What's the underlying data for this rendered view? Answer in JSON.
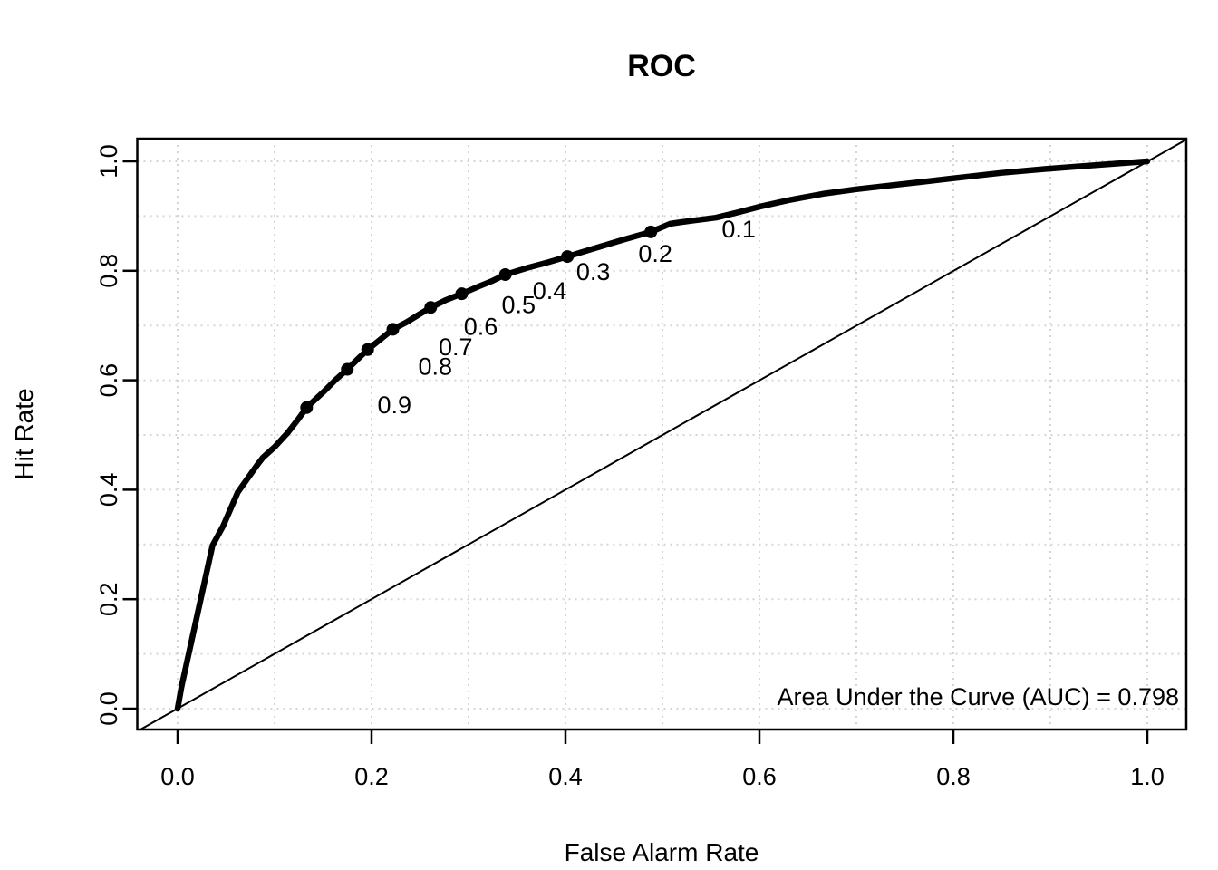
{
  "figure": {
    "title": "ROC",
    "background_color": "#ffffff",
    "foreground_color": "#000000",
    "grid_color": "#d4d4d4"
  },
  "chart_data": {
    "type": "line",
    "title": "ROC",
    "xlabel": "False Alarm Rate",
    "ylabel": "Hit Rate",
    "xlim": [
      0,
      1
    ],
    "ylim": [
      0,
      1
    ],
    "grid": "on",
    "grid_step": 0.1,
    "grid_style": "dotted-lightgray",
    "legend_position": "none",
    "x_ticks": {
      "values": [
        0,
        0.2,
        0.4,
        0.6,
        0.8,
        1.0
      ],
      "labels": [
        "0.0",
        "0.2",
        "0.4",
        "0.6",
        "0.8",
        "1.0"
      ]
    },
    "y_ticks": {
      "values": [
        0,
        0.2,
        0.4,
        0.6,
        0.8,
        1.0
      ],
      "labels": [
        "0.0",
        "0.2",
        "0.4",
        "0.6",
        "0.8",
        "1.0"
      ]
    },
    "series": [
      {
        "name": "roc-curve",
        "style": "thick-solid-black",
        "points": [
          [
            0,
            0
          ],
          [
            0.004,
            0.04
          ],
          [
            0.036,
            0.298
          ],
          [
            0.047,
            0.334
          ],
          [
            0.062,
            0.395
          ],
          [
            0.082,
            0.445
          ],
          [
            0.088,
            0.459
          ],
          [
            0.1,
            0.478
          ],
          [
            0.113,
            0.503
          ],
          [
            0.124,
            0.528
          ],
          [
            0.133,
            0.55
          ],
          [
            0.15,
            0.578
          ],
          [
            0.163,
            0.601
          ],
          [
            0.175,
            0.62
          ],
          [
            0.186,
            0.639
          ],
          [
            0.196,
            0.656
          ],
          [
            0.208,
            0.673
          ],
          [
            0.222,
            0.693
          ],
          [
            0.236,
            0.706
          ],
          [
            0.248,
            0.719
          ],
          [
            0.261,
            0.733
          ],
          [
            0.276,
            0.746
          ],
          [
            0.293,
            0.758
          ],
          [
            0.31,
            0.771
          ],
          [
            0.325,
            0.782
          ],
          [
            0.338,
            0.793
          ],
          [
            0.36,
            0.805
          ],
          [
            0.381,
            0.815
          ],
          [
            0.402,
            0.826
          ],
          [
            0.43,
            0.841
          ],
          [
            0.46,
            0.857
          ],
          [
            0.488,
            0.871
          ],
          [
            0.508,
            0.886
          ],
          [
            0.52,
            0.889
          ],
          [
            0.555,
            0.897
          ],
          [
            0.576,
            0.906
          ],
          [
            0.6,
            0.917
          ],
          [
            0.63,
            0.929
          ],
          [
            0.667,
            0.941
          ],
          [
            0.7,
            0.949
          ],
          [
            0.73,
            0.955
          ],
          [
            0.765,
            0.962
          ],
          [
            0.8,
            0.969
          ],
          [
            0.85,
            0.979
          ],
          [
            0.894,
            0.986
          ],
          [
            0.94,
            0.992
          ],
          [
            1,
            1
          ]
        ]
      },
      {
        "name": "chance-diagonal",
        "style": "thin-solid-black",
        "points": [
          [
            0,
            0
          ],
          [
            1,
            1
          ]
        ]
      }
    ],
    "cutoff_points": [
      {
        "label": "0.1",
        "x": 0.488,
        "y": 0.871
      },
      {
        "label": "0.2",
        "x": 0.402,
        "y": 0.826
      },
      {
        "label": "0.3",
        "x": 0.338,
        "y": 0.793
      },
      {
        "label": "0.4",
        "x": 0.293,
        "y": 0.758
      },
      {
        "label": "0.5",
        "x": 0.261,
        "y": 0.733
      },
      {
        "label": "0.6",
        "x": 0.222,
        "y": 0.693
      },
      {
        "label": "0.7",
        "x": 0.196,
        "y": 0.656
      },
      {
        "label": "0.8",
        "x": 0.175,
        "y": 0.62
      },
      {
        "label": "0.9",
        "x": 0.133,
        "y": 0.55
      }
    ],
    "annotation": {
      "text": "Area Under the Curve (AUC) = 0.798",
      "auc": 0.798
    }
  }
}
